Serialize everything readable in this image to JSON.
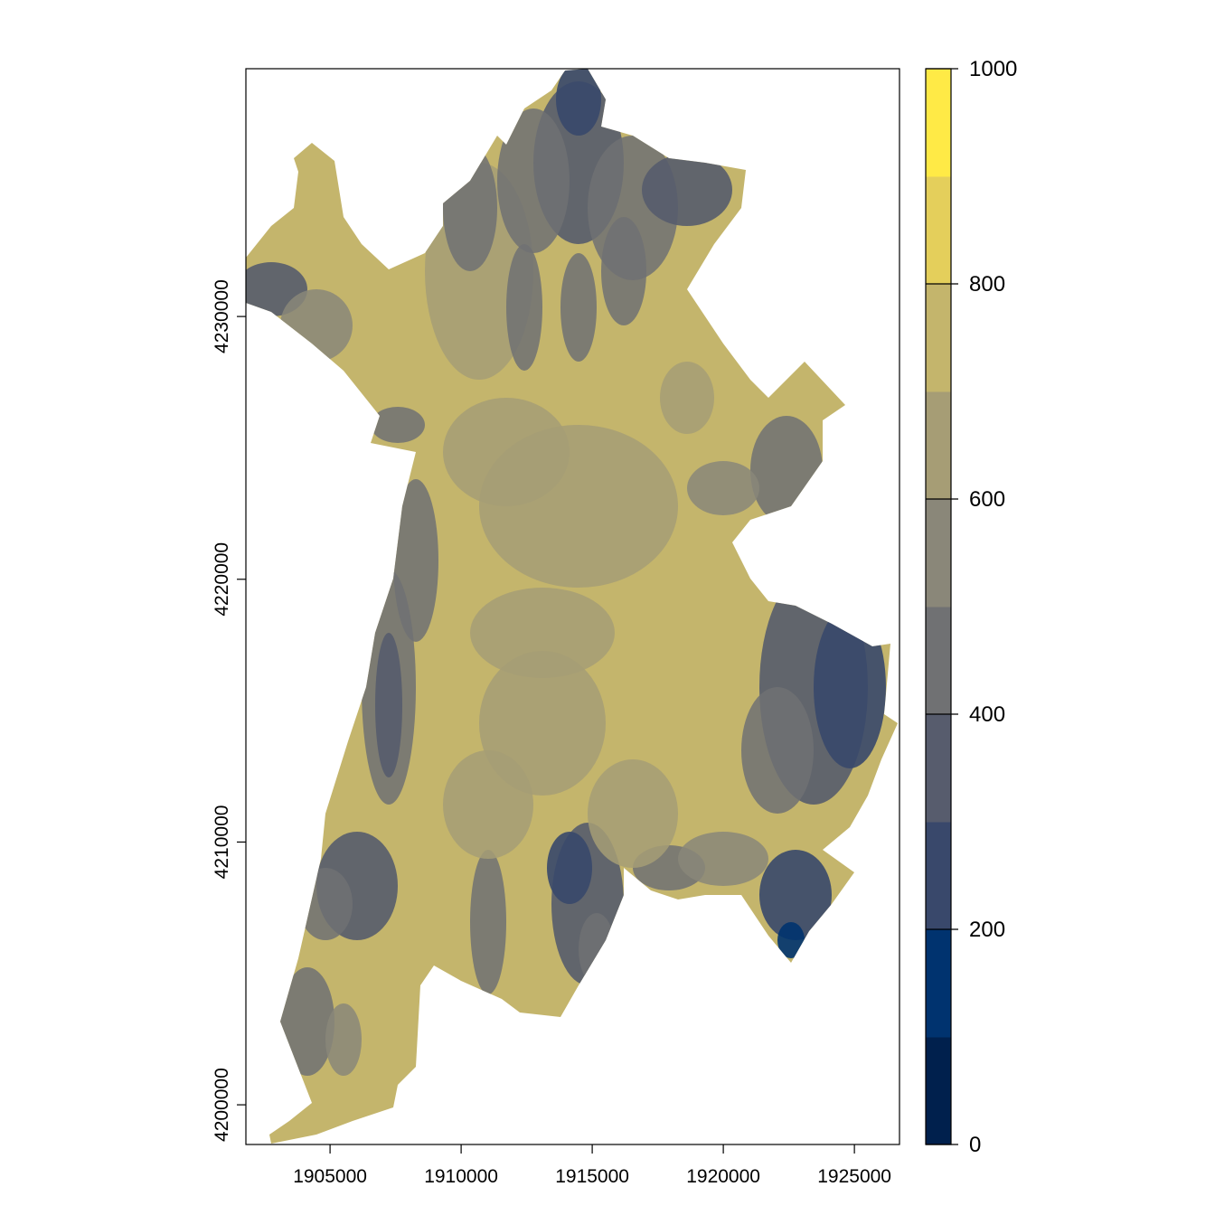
{
  "chart_data": {
    "type": "heatmap",
    "title": "",
    "xlabel": "",
    "ylabel": "",
    "xlim": [
      1901790,
      1926720
    ],
    "ylim": [
      4198490,
      4239430
    ],
    "x_ticks": [
      "1905000",
      "1910000",
      "1915000",
      "1920000",
      "1925000"
    ],
    "x_tick_values": [
      1905000,
      1910000,
      1915000,
      1920000,
      1925000
    ],
    "y_ticks": [
      "4200000",
      "4210000",
      "4220000",
      "4230000"
    ],
    "y_tick_values": [
      4200000,
      4210000,
      4220000,
      4230000
    ],
    "grid": false,
    "legend": {
      "placement": "right",
      "range": [
        0,
        1000
      ],
      "breaks": [
        0,
        100,
        200,
        300,
        400,
        500,
        600,
        700,
        800,
        900,
        1000
      ],
      "tick_labels": [
        "0",
        "200",
        "400",
        "600",
        "800",
        "1000"
      ],
      "tick_values": [
        0,
        200,
        400,
        600,
        800,
        1000
      ],
      "colors": [
        "#00204D",
        "#00336F",
        "#39486B",
        "#575C6D",
        "#707173",
        "#8A8779",
        "#A69D75",
        "#C4B56C",
        "#E4CF5B",
        "#FFEA46"
      ]
    }
  }
}
